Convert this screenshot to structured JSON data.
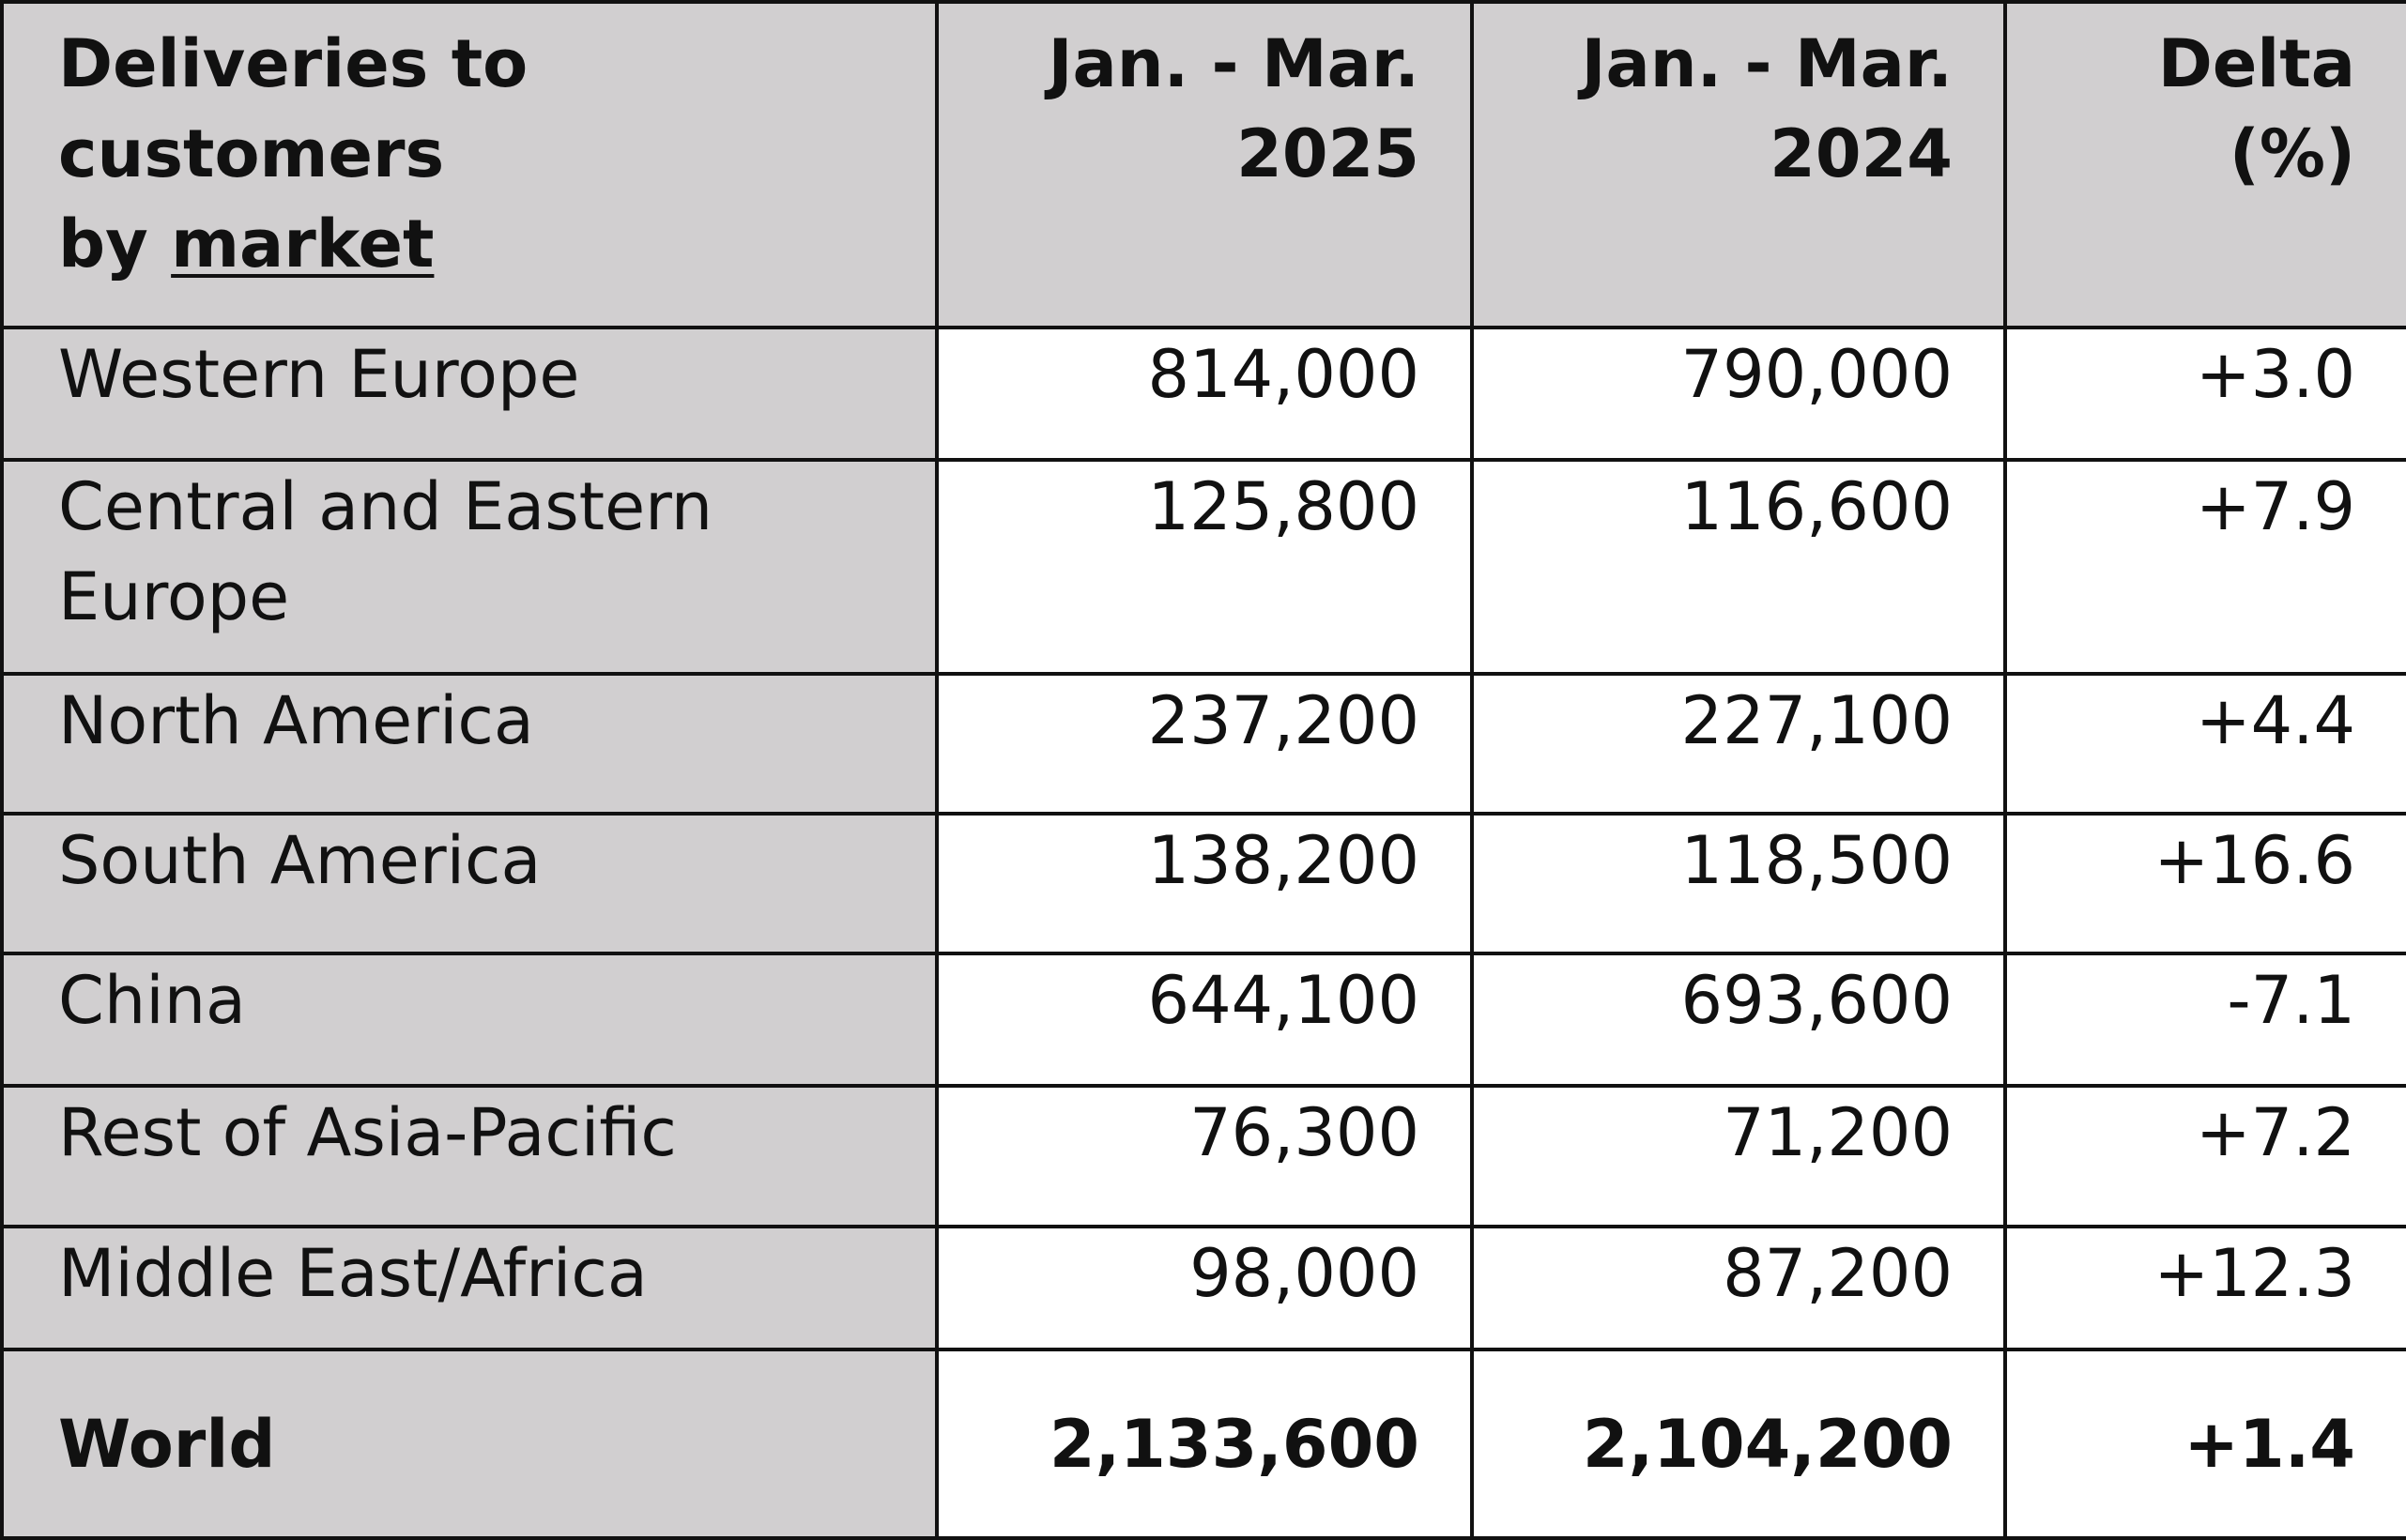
{
  "table": {
    "header": {
      "market_line1": "Deliveries to customers",
      "market_line2_prefix": "by ",
      "market_line2_underlined": "market",
      "col_2025_line1": "Jan. - Mar.",
      "col_2025_line2": "2025",
      "col_2024_line1": "Jan. - Mar.",
      "col_2024_line2": "2024",
      "delta_line1": "Delta",
      "delta_line2": "(%)"
    },
    "rows": [
      {
        "market_line1": "Western Europe",
        "market_line2": "",
        "v2025": "814,000",
        "v2024": "790,000",
        "delta": "+3.0"
      },
      {
        "market_line1": "Central and Eastern",
        "market_line2": "Europe",
        "v2025": "125,800",
        "v2024": "116,600",
        "delta": "+7.9"
      },
      {
        "market_line1": "North America",
        "market_line2": "",
        "v2025": "237,200",
        "v2024": "227,100",
        "delta": "+4.4"
      },
      {
        "market_line1": "South America",
        "market_line2": "",
        "v2025": "138,200",
        "v2024": "118,500",
        "delta": "+16.6"
      },
      {
        "market_line1": "China",
        "market_line2": "",
        "v2025": "644,100",
        "v2024": "693,600",
        "delta": "-7.1"
      },
      {
        "market_line1": "Rest of Asia-Pacific",
        "market_line2": "",
        "v2025": "76,300",
        "v2024": "71,200",
        "delta": "+7.2"
      },
      {
        "market_line1": "Middle East/Africa",
        "market_line2": "",
        "v2025": "98,000",
        "v2024": "87,200",
        "delta": "+12.3"
      }
    ],
    "total": {
      "market": "World",
      "v2025": "2,133,600",
      "v2024": "2,104,200",
      "delta": "+1.4"
    }
  },
  "colors": {
    "label_background": "#d1cfd0",
    "value_background": "#ffffff",
    "border": "#111111",
    "text": "#111111"
  }
}
